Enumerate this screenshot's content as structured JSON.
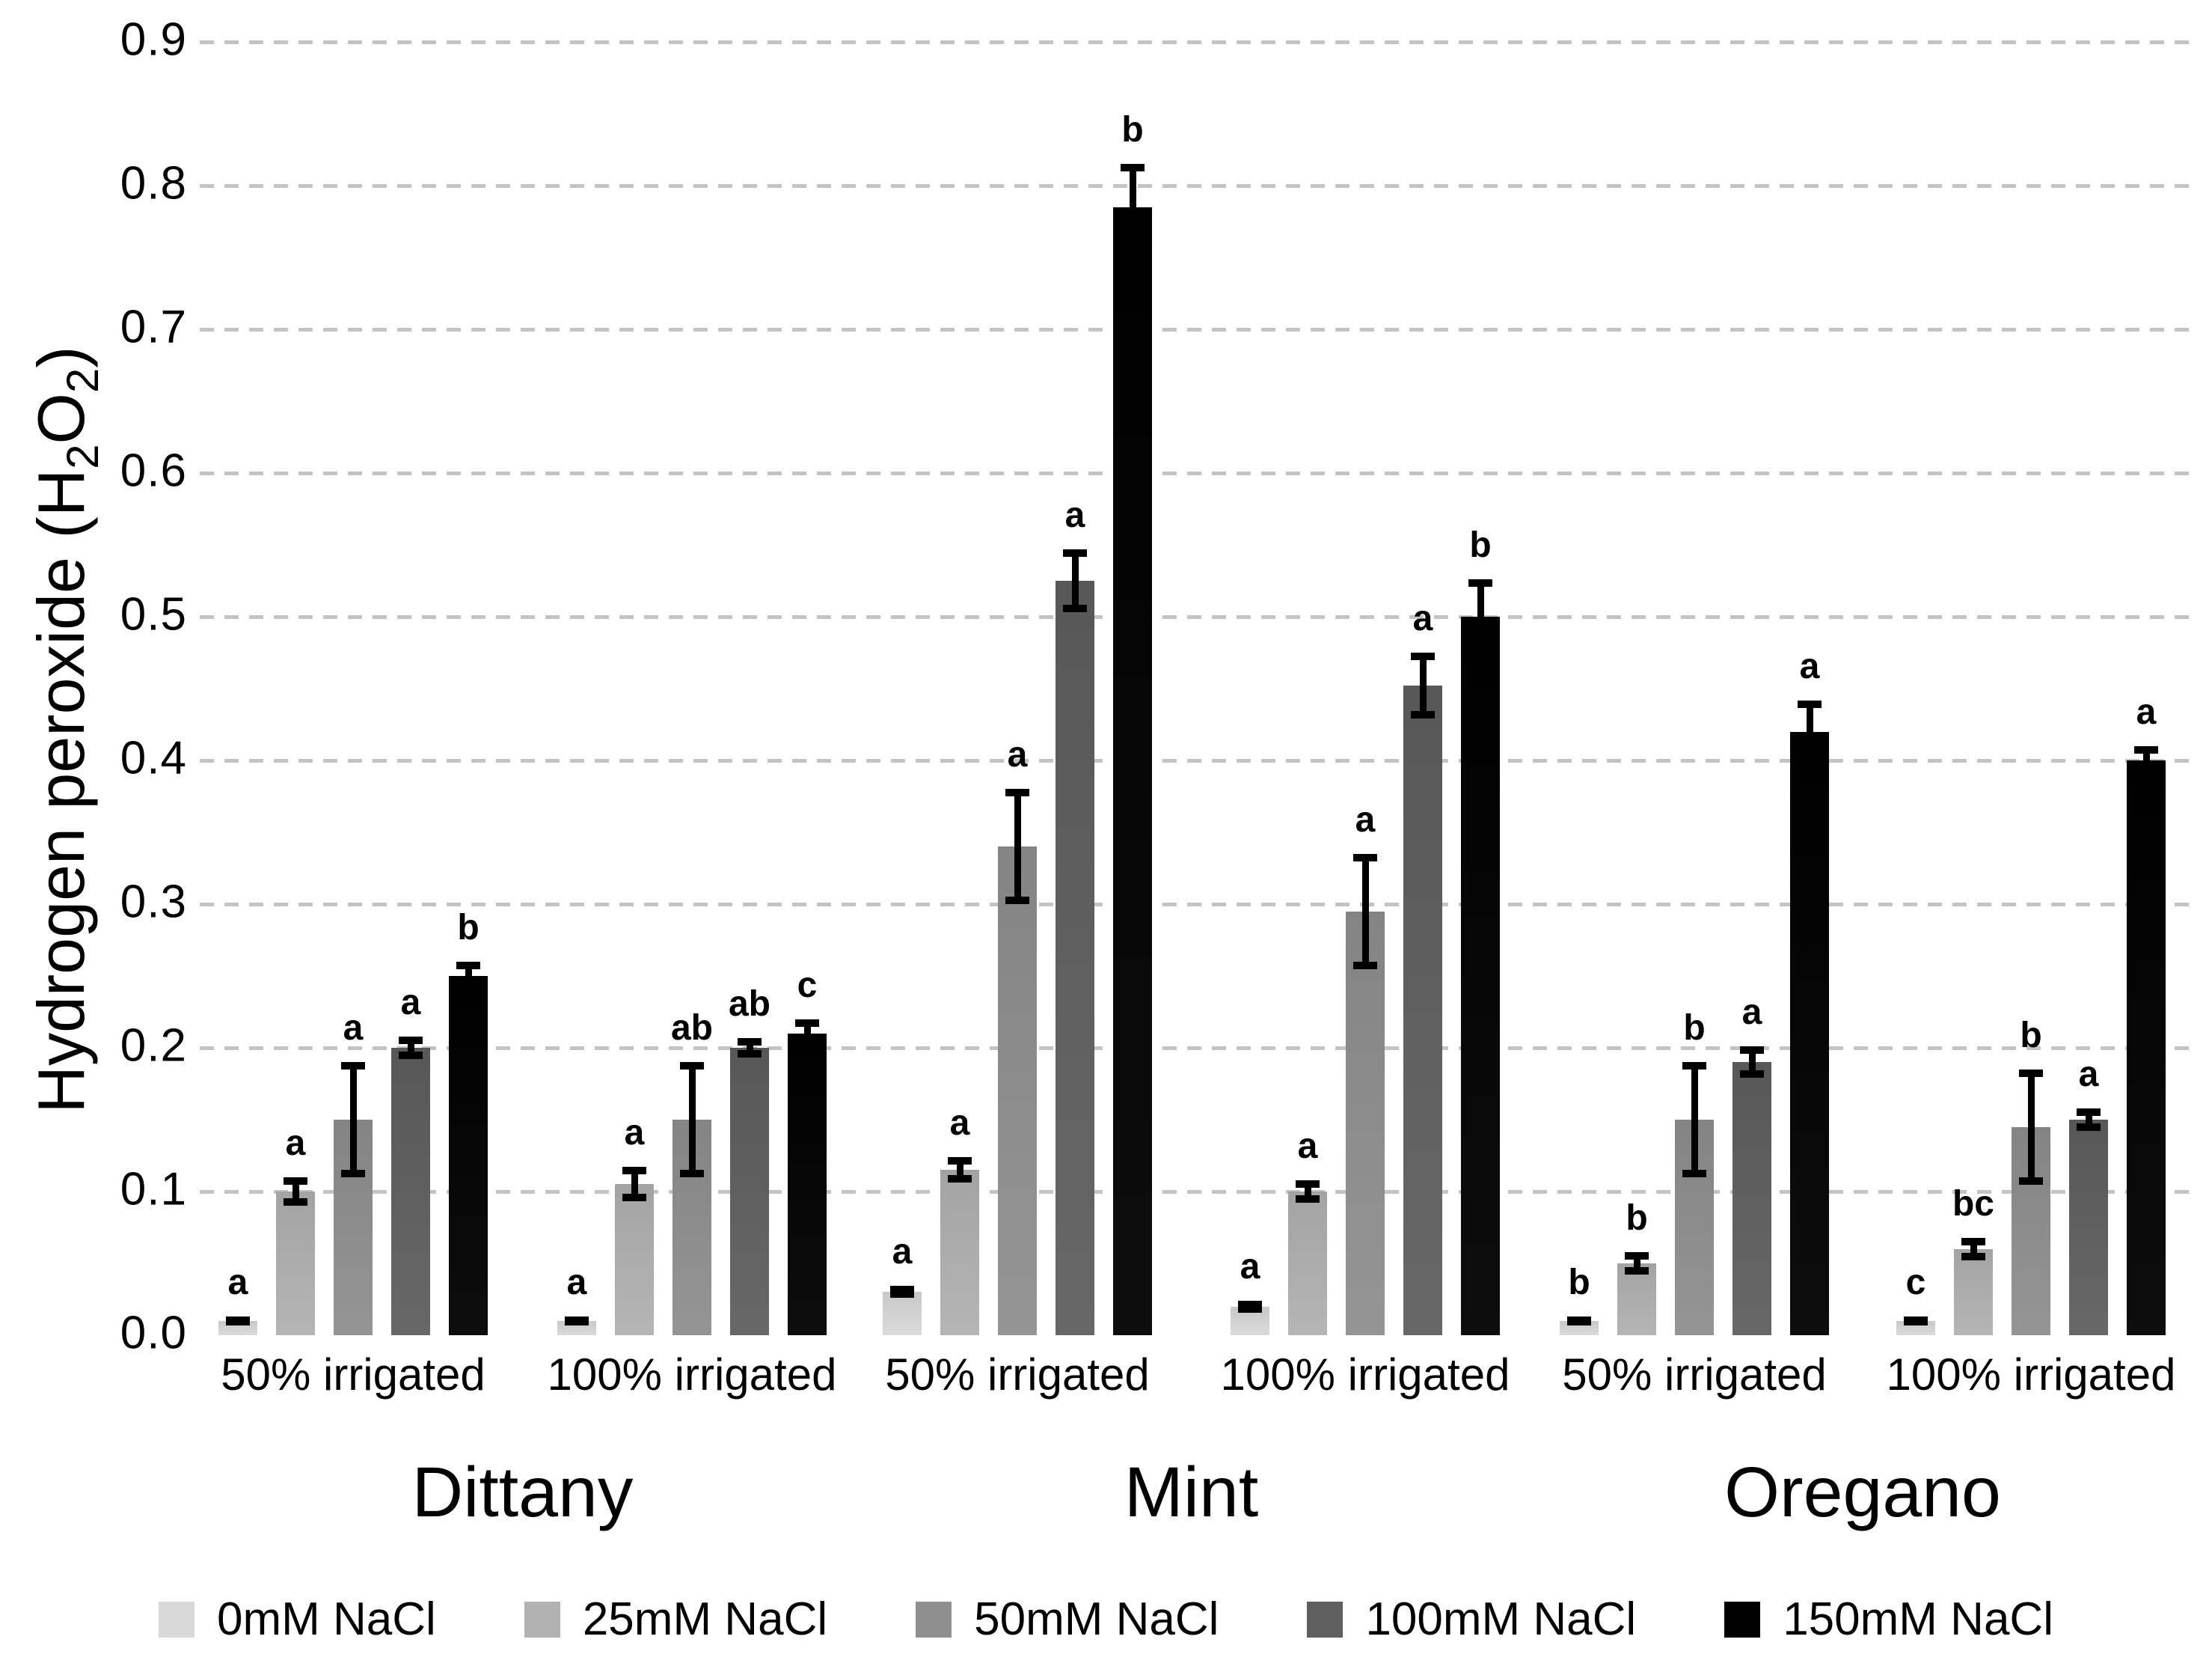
{
  "figure": {
    "y_axis_title": {
      "pre": "Hydrogen peroxide (H",
      "sub1": "2",
      "mid": "O",
      "sub2": "2",
      "post": ")"
    }
  },
  "chart_data": {
    "type": "bar",
    "title": "",
    "ylabel": "Hydrogen peroxide (H2O2)",
    "xlabel": "",
    "ylim": [
      0,
      0.9
    ],
    "yticks": [
      0.0,
      0.1,
      0.2,
      0.3,
      0.4,
      0.5,
      0.6,
      0.7,
      0.8,
      0.9
    ],
    "grid": "horizontal dashed, no axis lines",
    "legend_position": "bottom",
    "error_bars": "plus-minus, capped",
    "series": [
      {
        "name": "0mM NaCl",
        "color": "#d9d9d9"
      },
      {
        "name": "25mM NaCl",
        "color": "#b1b1b1"
      },
      {
        "name": "50mM NaCl",
        "color": "#8f8f8f"
      },
      {
        "name": "100mM NaCl",
        "color": "#5f5f5f"
      },
      {
        "name": "150mM NaCl",
        "color": "#000000"
      }
    ],
    "facets": [
      {
        "label": "Dittany",
        "groups": [
          {
            "label": "50% irrigated",
            "bars": [
              {
                "series": "0mM NaCl",
                "value": 0.01,
                "error": 0.003,
                "letter": "a"
              },
              {
                "series": "25mM NaCl",
                "value": 0.1,
                "error": 0.01,
                "letter": "a"
              },
              {
                "series": "50mM NaCl",
                "value": 0.15,
                "error": 0.04,
                "letter": "a"
              },
              {
                "series": "100mM NaCl",
                "value": 0.2,
                "error": 0.008,
                "letter": "a"
              },
              {
                "series": "150mM NaCl",
                "value": 0.25,
                "error": 0.01,
                "letter": "b"
              }
            ]
          },
          {
            "label": "100% irrigated",
            "bars": [
              {
                "series": "0mM NaCl",
                "value": 0.01,
                "error": 0.003,
                "letter": "a"
              },
              {
                "series": "25mM NaCl",
                "value": 0.105,
                "error": 0.012,
                "letter": "a"
              },
              {
                "series": "50mM NaCl",
                "value": 0.15,
                "error": 0.04,
                "letter": "ab"
              },
              {
                "series": "100mM NaCl",
                "value": 0.2,
                "error": 0.007,
                "letter": "ab"
              },
              {
                "series": "150mM NaCl",
                "value": 0.21,
                "error": 0.01,
                "letter": "c"
              }
            ]
          }
        ]
      },
      {
        "label": "Mint",
        "groups": [
          {
            "label": "50% irrigated",
            "bars": [
              {
                "series": "0mM NaCl",
                "value": 0.03,
                "error": 0.004,
                "letter": "a"
              },
              {
                "series": "25mM NaCl",
                "value": 0.115,
                "error": 0.009,
                "letter": "a"
              },
              {
                "series": "50mM NaCl",
                "value": 0.34,
                "error": 0.04,
                "letter": "a"
              },
              {
                "series": "100mM NaCl",
                "value": 0.525,
                "error": 0.022,
                "letter": "a"
              },
              {
                "series": "150mM NaCl",
                "value": 0.785,
                "error": 0.03,
                "letter": "b"
              }
            ]
          },
          {
            "label": "100% irrigated",
            "bars": [
              {
                "series": "0mM NaCl",
                "value": 0.02,
                "error": 0.004,
                "letter": "a"
              },
              {
                "series": "25mM NaCl",
                "value": 0.1,
                "error": 0.008,
                "letter": "a"
              },
              {
                "series": "50mM NaCl",
                "value": 0.295,
                "error": 0.04,
                "letter": "a"
              },
              {
                "series": "100mM NaCl",
                "value": 0.452,
                "error": 0.023,
                "letter": "a"
              },
              {
                "series": "150mM NaCl",
                "value": 0.5,
                "error": 0.026,
                "letter": "b"
              }
            ]
          }
        ]
      },
      {
        "label": "Oregano",
        "groups": [
          {
            "label": "50% irrigated",
            "bars": [
              {
                "series": "0mM NaCl",
                "value": 0.01,
                "error": 0.003,
                "letter": "b"
              },
              {
                "series": "25mM NaCl",
                "value": 0.05,
                "error": 0.008,
                "letter": "b"
              },
              {
                "series": "50mM NaCl",
                "value": 0.15,
                "error": 0.04,
                "letter": "b"
              },
              {
                "series": "100mM NaCl",
                "value": 0.19,
                "error": 0.011,
                "letter": "a"
              },
              {
                "series": "150mM NaCl",
                "value": 0.42,
                "error": 0.022,
                "letter": "a"
              }
            ]
          },
          {
            "label": "100% irrigated",
            "bars": [
              {
                "series": "0mM NaCl",
                "value": 0.01,
                "error": 0.003,
                "letter": "c"
              },
              {
                "series": "25mM NaCl",
                "value": 0.06,
                "error": 0.008,
                "letter": "bc"
              },
              {
                "series": "50mM NaCl",
                "value": 0.145,
                "error": 0.04,
                "letter": "b"
              },
              {
                "series": "100mM NaCl",
                "value": 0.15,
                "error": 0.008,
                "letter": "a"
              },
              {
                "series": "150mM NaCl",
                "value": 0.4,
                "error": 0.01,
                "letter": "a"
              }
            ]
          }
        ]
      }
    ]
  }
}
